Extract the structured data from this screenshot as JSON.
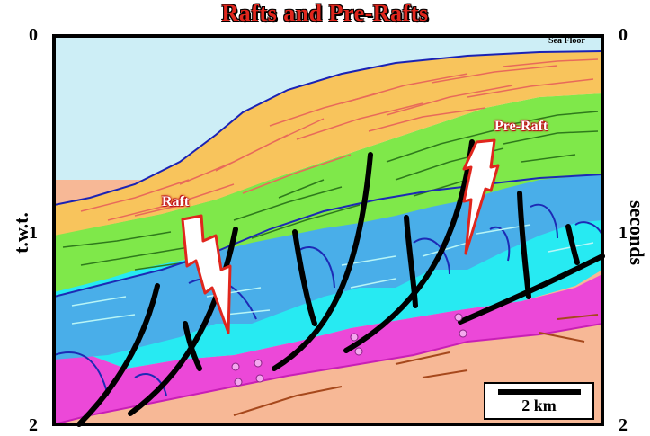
{
  "title": "Rafts and Pre-Rafts",
  "axes": {
    "left_label": "t.w.t.",
    "right_label": "seconds",
    "left_ticks": [
      "0",
      "1",
      "2"
    ],
    "right_ticks": [
      "0",
      "1",
      "2"
    ]
  },
  "labels": {
    "sea_floor": "Sea Floor",
    "raft": "Raft",
    "pre_raft": "Pre-Raft"
  },
  "scale_bar": {
    "label": "2 km"
  },
  "colors": {
    "water": "#cdeef6",
    "orange_layer": "#f8c45c",
    "green_layer": "#7fe84a",
    "blue_layer": "#49aee9",
    "cyan_layer": "#27eaf2",
    "magenta_layer": "#ec48d8",
    "salmon_layer": "#f7b896",
    "fault": "#000000",
    "arrow": "#e0261d"
  }
}
